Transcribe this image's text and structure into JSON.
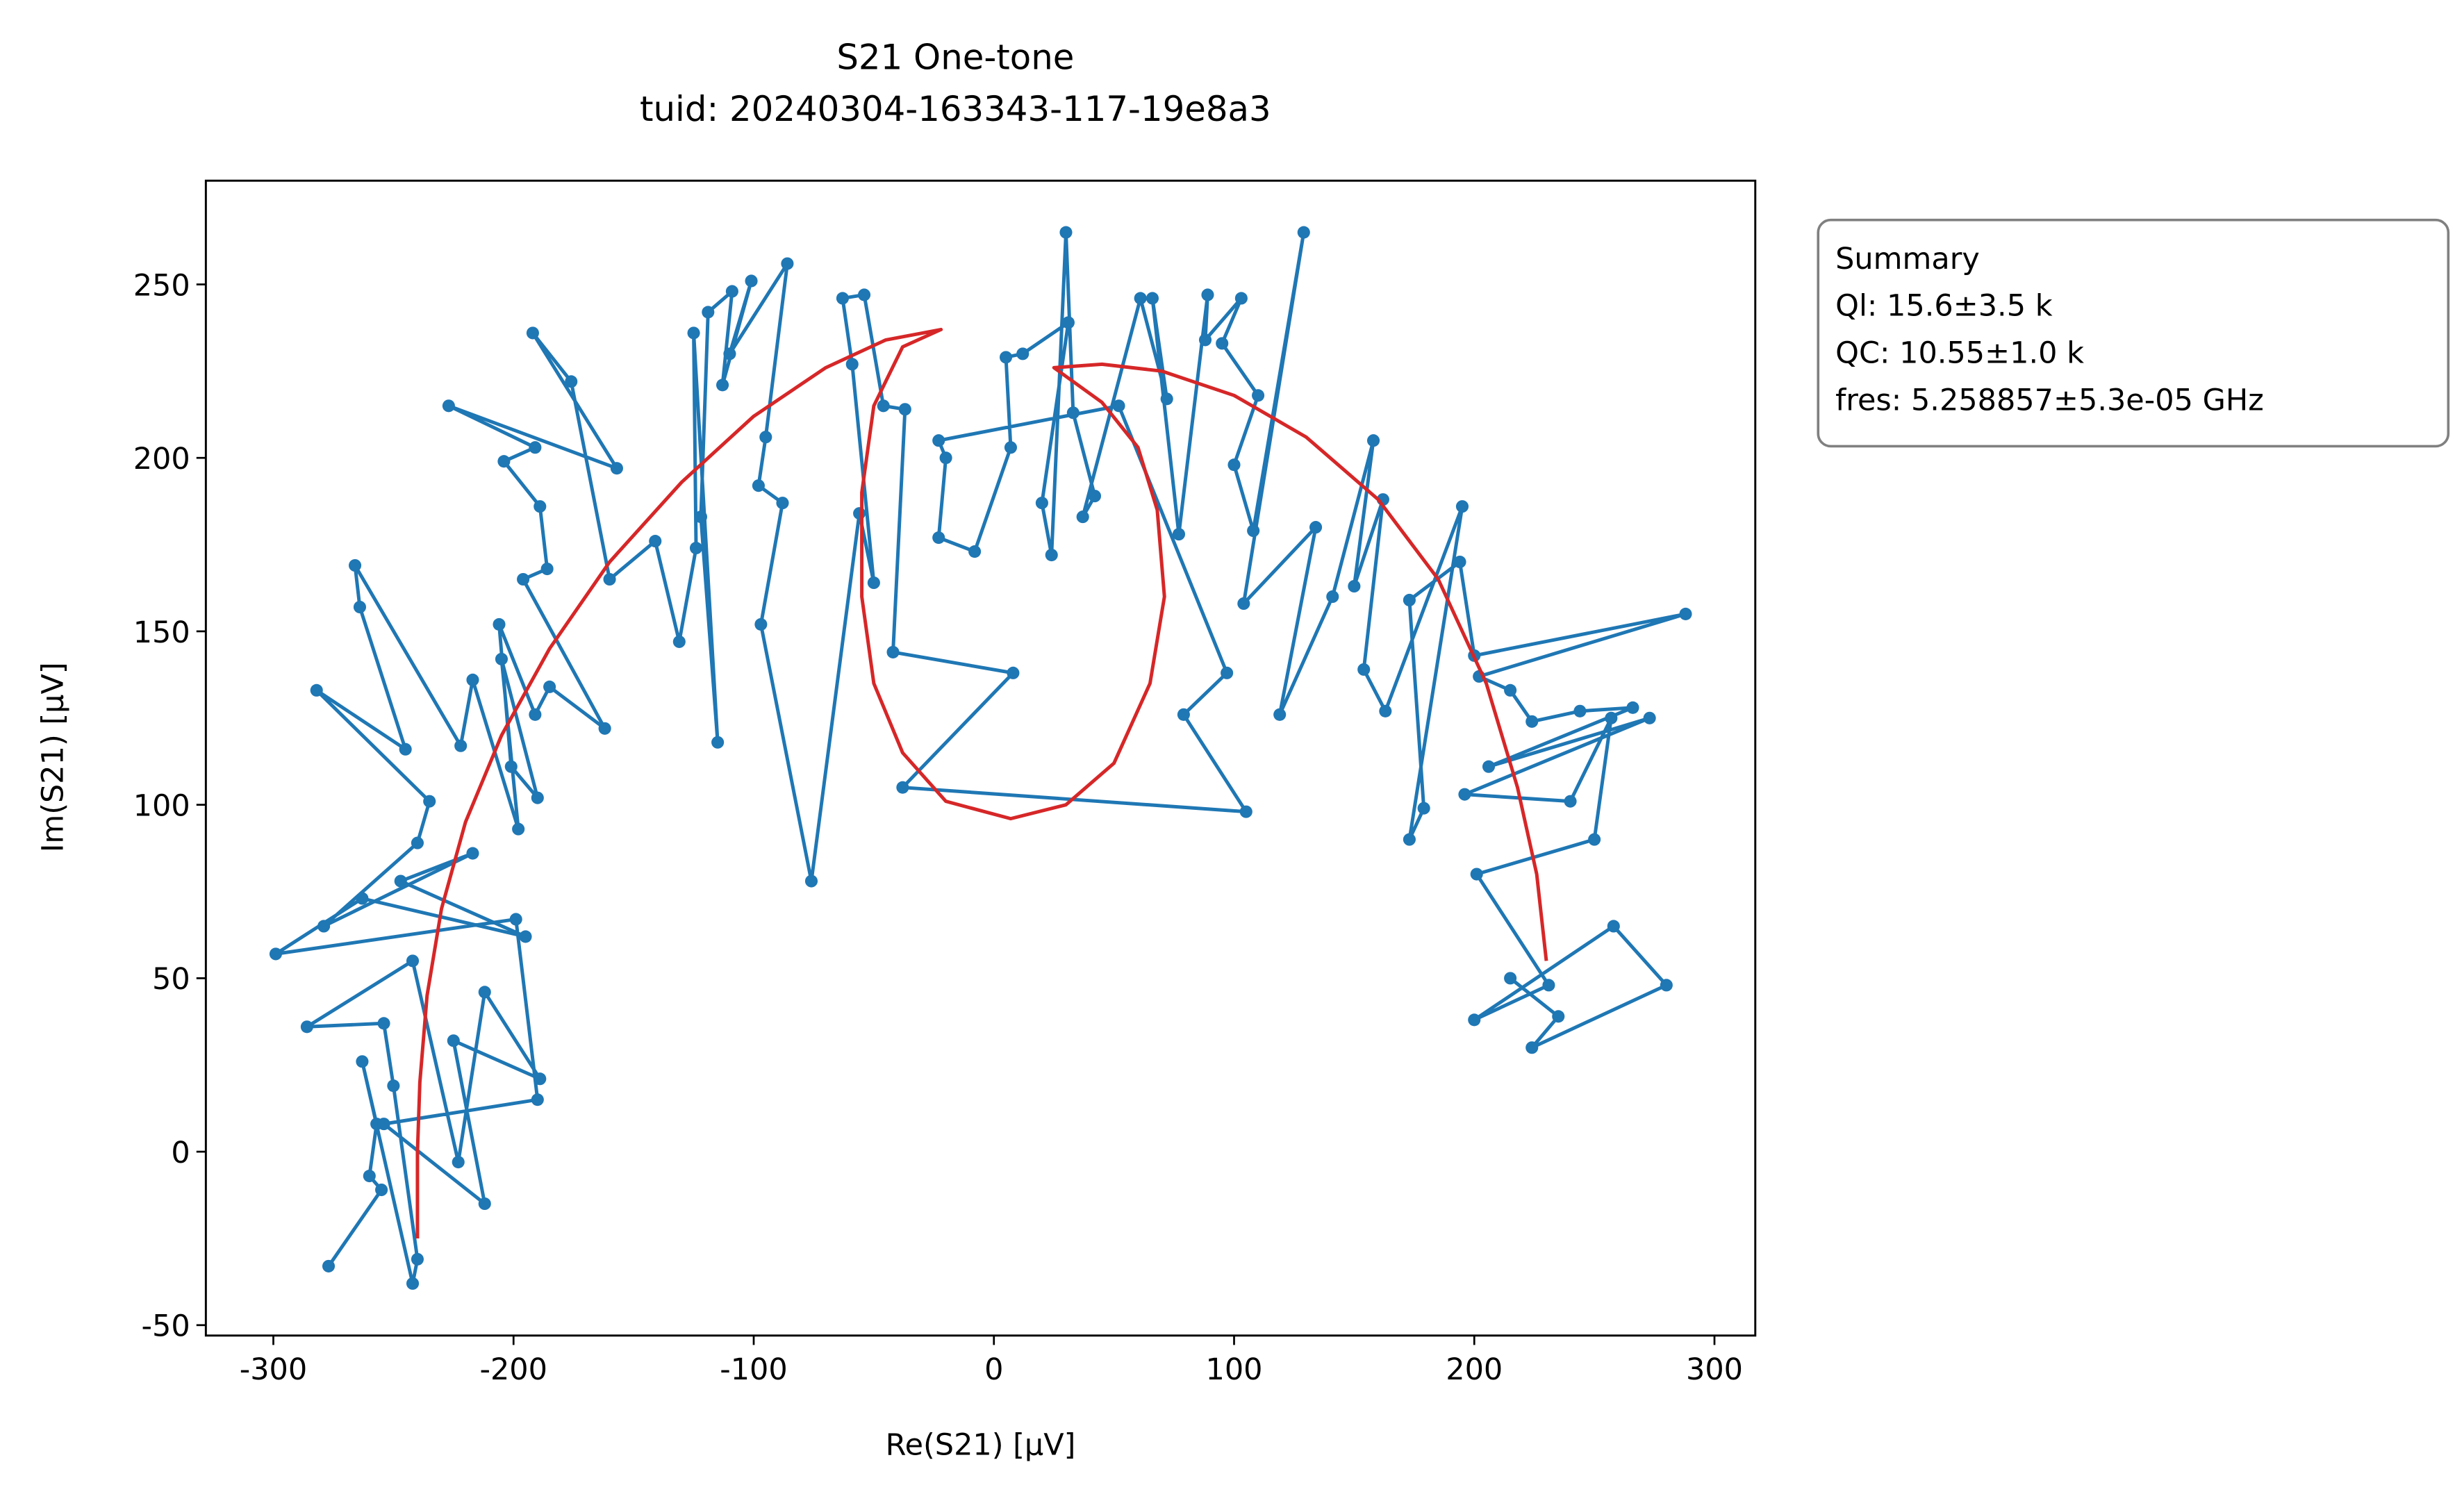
{
  "chart_data": {
    "type": "line",
    "title": "S21 One-tone",
    "subtitle": "tuid: 20240304-163343-117-19e8a3",
    "xlabel": "Re(S21) [µV]",
    "ylabel": "Im(S21) [µV]",
    "annotation": [
      "Summary",
      "Ql: 15.6±3.5 k",
      "QC: 10.55±1.0 k",
      "fres: 5.258857±5.3e-05 GHz"
    ],
    "xlim": [
      -328.1,
      317.0
    ],
    "ylim": [
      -53.0,
      279.9
    ],
    "xticks": [
      -300,
      -200,
      -100,
      0,
      100,
      200,
      300
    ],
    "yticks": [
      -50,
      0,
      50,
      100,
      150,
      200,
      250
    ],
    "series": [
      {
        "color": "#1f77b4",
        "marker": true,
        "x": [
          -277,
          -255,
          -260,
          -257,
          -263,
          -242,
          -240,
          -250,
          -254,
          -286,
          -242,
          -223,
          -212,
          -189,
          -225,
          -212,
          -254,
          -190,
          -199,
          -299,
          -263,
          -195,
          -247,
          -217,
          -279,
          -240,
          -235,
          -282,
          -245,
          -264,
          -266,
          -222,
          -217,
          -198,
          -205,
          -190,
          -201,
          -206,
          -191,
          -185,
          -162,
          -196,
          -186,
          -189,
          -204,
          -191,
          -227,
          -157,
          -192,
          -176,
          -160,
          -141,
          -131,
          -124,
          -125,
          -115,
          -122,
          -119,
          -109,
          -113,
          -101,
          -110,
          -86,
          -95,
          -98,
          -88,
          -97,
          -76,
          -56,
          -50,
          -59,
          -63,
          -54,
          -46,
          -37,
          -42,
          8,
          -38,
          105,
          79,
          97,
          52,
          -23,
          -20,
          -23,
          -8,
          7,
          5,
          12,
          31,
          20,
          24,
          30,
          33,
          42,
          37,
          61,
          72,
          66,
          77,
          89,
          88,
          103,
          95,
          110,
          100,
          108,
          129,
          104,
          134,
          119,
          141,
          158,
          150,
          162,
          154,
          163,
          195,
          173,
          179,
          173,
          194,
          200,
          288,
          202,
          215,
          224,
          244,
          266,
          206,
          273,
          196,
          240,
          257,
          250,
          201,
          231,
          200,
          258,
          280,
          224,
          235,
          215
        ],
        "y": [
          -33,
          -11,
          -7,
          8,
          26,
          -38,
          -31,
          19,
          37,
          36,
          55,
          -3,
          46,
          21,
          32,
          -15,
          8,
          15,
          67,
          57,
          73,
          62,
          78,
          86,
          65,
          89,
          101,
          133,
          116,
          157,
          169,
          117,
          136,
          93,
          142,
          102,
          111,
          152,
          126,
          134,
          122,
          165,
          168,
          186,
          199,
          203,
          215,
          197,
          236,
          222,
          165,
          176,
          147,
          174,
          236,
          118,
          183,
          242,
          248,
          221,
          251,
          230,
          256,
          206,
          192,
          187,
          152,
          78,
          184,
          164,
          227,
          246,
          247,
          215,
          214,
          144,
          138,
          105,
          98,
          126,
          138,
          215,
          205,
          200,
          177,
          173,
          203,
          229,
          230,
          239,
          187,
          172,
          265,
          213,
          189,
          183,
          246,
          217,
          246,
          178,
          247,
          234,
          246,
          233,
          218,
          198,
          179,
          265,
          158,
          180,
          126,
          160,
          205,
          163,
          188,
          139,
          127,
          186,
          90,
          99,
          159,
          170,
          143,
          155,
          137,
          133,
          124,
          127,
          128,
          111,
          125,
          103,
          101,
          125,
          90,
          80,
          48,
          38,
          65,
          48,
          30,
          39,
          50
        ]
      },
      {
        "color": "#d62728",
        "marker": false,
        "x": [
          -240,
          -240,
          -239,
          -236,
          -230,
          -220,
          -205,
          -185,
          -160,
          -130,
          -100,
          -70,
          -45,
          -22,
          -38,
          -50,
          -55,
          -55,
          -50,
          -38,
          -20,
          7,
          30,
          50,
          65,
          71,
          68,
          60,
          45,
          25,
          45,
          70,
          100,
          130,
          160,
          185,
          205,
          218,
          226,
          230
        ],
        "y": [
          -25,
          0,
          20,
          45,
          70,
          95,
          120,
          145,
          170,
          193,
          212,
          226,
          234,
          237,
          232,
          215,
          190,
          160,
          135,
          115,
          101,
          96,
          100,
          112,
          135,
          160,
          185,
          203,
          216,
          226,
          227,
          225,
          218,
          206,
          188,
          165,
          135,
          105,
          80,
          55
        ]
      }
    ]
  }
}
